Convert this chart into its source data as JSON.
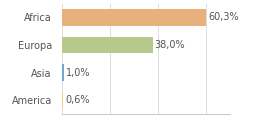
{
  "categories": [
    "Africa",
    "Europa",
    "Asia",
    "America"
  ],
  "values": [
    60.3,
    38.0,
    1.0,
    0.6
  ],
  "bar_colors": [
    "#e8b07a",
    "#b5c98a",
    "#6fa8d4",
    "#e8d080"
  ],
  "labels": [
    "60,3%",
    "38,0%",
    "1,0%",
    "0,6%"
  ],
  "xlim": [
    0,
    70
  ],
  "background_color": "#ffffff",
  "text_color": "#555555",
  "bar_height": 0.6,
  "label_fontsize": 7.0,
  "tick_fontsize": 7.0
}
